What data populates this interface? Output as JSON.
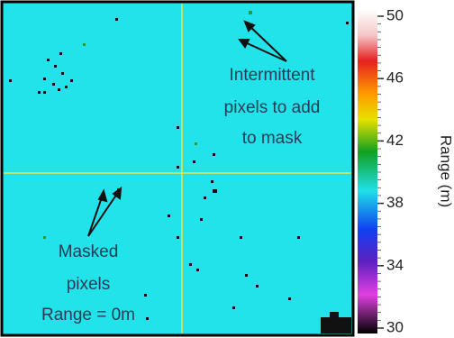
{
  "annotations": [
    {
      "lines": [
        "Intermittent",
        "pixels to add",
        "to mask"
      ]
    },
    {
      "lines": [
        "Masked",
        "pixels",
        "Range = 0m"
      ]
    }
  ],
  "colorbar": {
    "label": "Range (m)",
    "ticks": [
      50,
      46,
      42,
      38,
      34,
      30
    ]
  }
}
